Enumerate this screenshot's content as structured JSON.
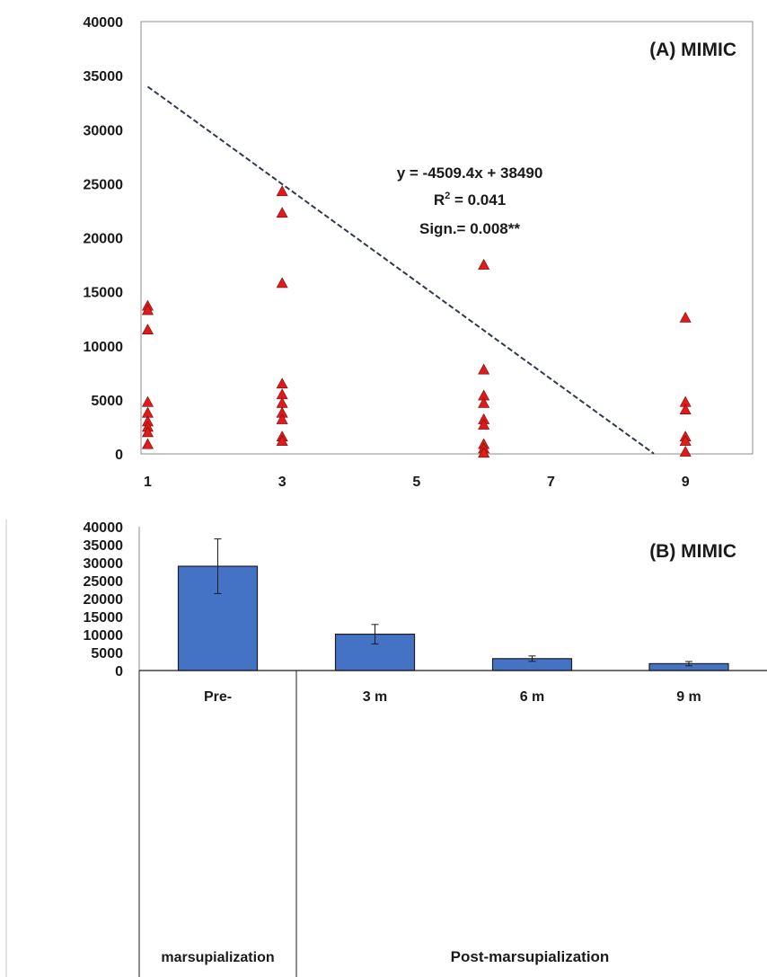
{
  "chart_data": [
    {
      "type": "scatter",
      "title": "(A) MIMIC",
      "xlim": [
        0.9,
        10
      ],
      "ylim": [
        0,
        40000
      ],
      "x_ticks": [
        1,
        3,
        5,
        7,
        9
      ],
      "y_ticks": [
        0,
        5000,
        10000,
        15000,
        20000,
        25000,
        30000,
        35000,
        40000
      ],
      "grid": false,
      "marker": "triangle",
      "marker_color": "#e01b1b",
      "trendline": {
        "slope": -4509.4,
        "intercept": 38490,
        "style": "dashed",
        "color": "#2f3a4a",
        "x_range": [
          1,
          8.53
        ]
      },
      "annotation": {
        "equation": "y = -4509.4x + 38490",
        "r2_prefix": "R",
        "r2_sup": "2",
        "r2_suffix": " = 0.041",
        "significance": "Sign.= 0.008**"
      },
      "points": [
        {
          "x": 1,
          "y": 13700
        },
        {
          "x": 1,
          "y": 13300
        },
        {
          "x": 1,
          "y": 11500
        },
        {
          "x": 1,
          "y": 4800
        },
        {
          "x": 1,
          "y": 3800
        },
        {
          "x": 1,
          "y": 3000
        },
        {
          "x": 1,
          "y": 2500
        },
        {
          "x": 1,
          "y": 2000
        },
        {
          "x": 1,
          "y": 900
        },
        {
          "x": 3,
          "y": 24300
        },
        {
          "x": 3,
          "y": 22300
        },
        {
          "x": 3,
          "y": 15800
        },
        {
          "x": 3,
          "y": 6500
        },
        {
          "x": 3,
          "y": 5500
        },
        {
          "x": 3,
          "y": 4700
        },
        {
          "x": 3,
          "y": 3800
        },
        {
          "x": 3,
          "y": 3200
        },
        {
          "x": 3,
          "y": 1600
        },
        {
          "x": 3,
          "y": 1200
        },
        {
          "x": 6,
          "y": 17500
        },
        {
          "x": 6,
          "y": 7800
        },
        {
          "x": 6,
          "y": 5400
        },
        {
          "x": 6,
          "y": 4700
        },
        {
          "x": 6,
          "y": 3200
        },
        {
          "x": 6,
          "y": 2700
        },
        {
          "x": 6,
          "y": 900
        },
        {
          "x": 6,
          "y": 500
        },
        {
          "x": 6,
          "y": 100
        },
        {
          "x": 9,
          "y": 12600
        },
        {
          "x": 9,
          "y": 4800
        },
        {
          "x": 9,
          "y": 4100
        },
        {
          "x": 9,
          "y": 1600
        },
        {
          "x": 9,
          "y": 1200
        },
        {
          "x": 9,
          "y": 200
        }
      ]
    },
    {
      "type": "bar",
      "title": "(B) MIMIC",
      "ylim": [
        0,
        40000
      ],
      "y_ticks": [
        0,
        5000,
        10000,
        15000,
        20000,
        25000,
        30000,
        35000,
        40000
      ],
      "grid": false,
      "bar_color": "#4472c4",
      "categories": [
        "Pre-marsupialization",
        "3 m",
        "6 m",
        "9 m"
      ],
      "category_lines": [
        [
          "Pre-",
          "marsupialization"
        ],
        [
          "3 m"
        ],
        [
          "6 m"
        ],
        [
          "9 m"
        ]
      ],
      "values": [
        29000,
        10100,
        3300,
        1900
      ],
      "errors": [
        7600,
        2700,
        750,
        600
      ],
      "group_label": "Post-marsupialization"
    }
  ]
}
